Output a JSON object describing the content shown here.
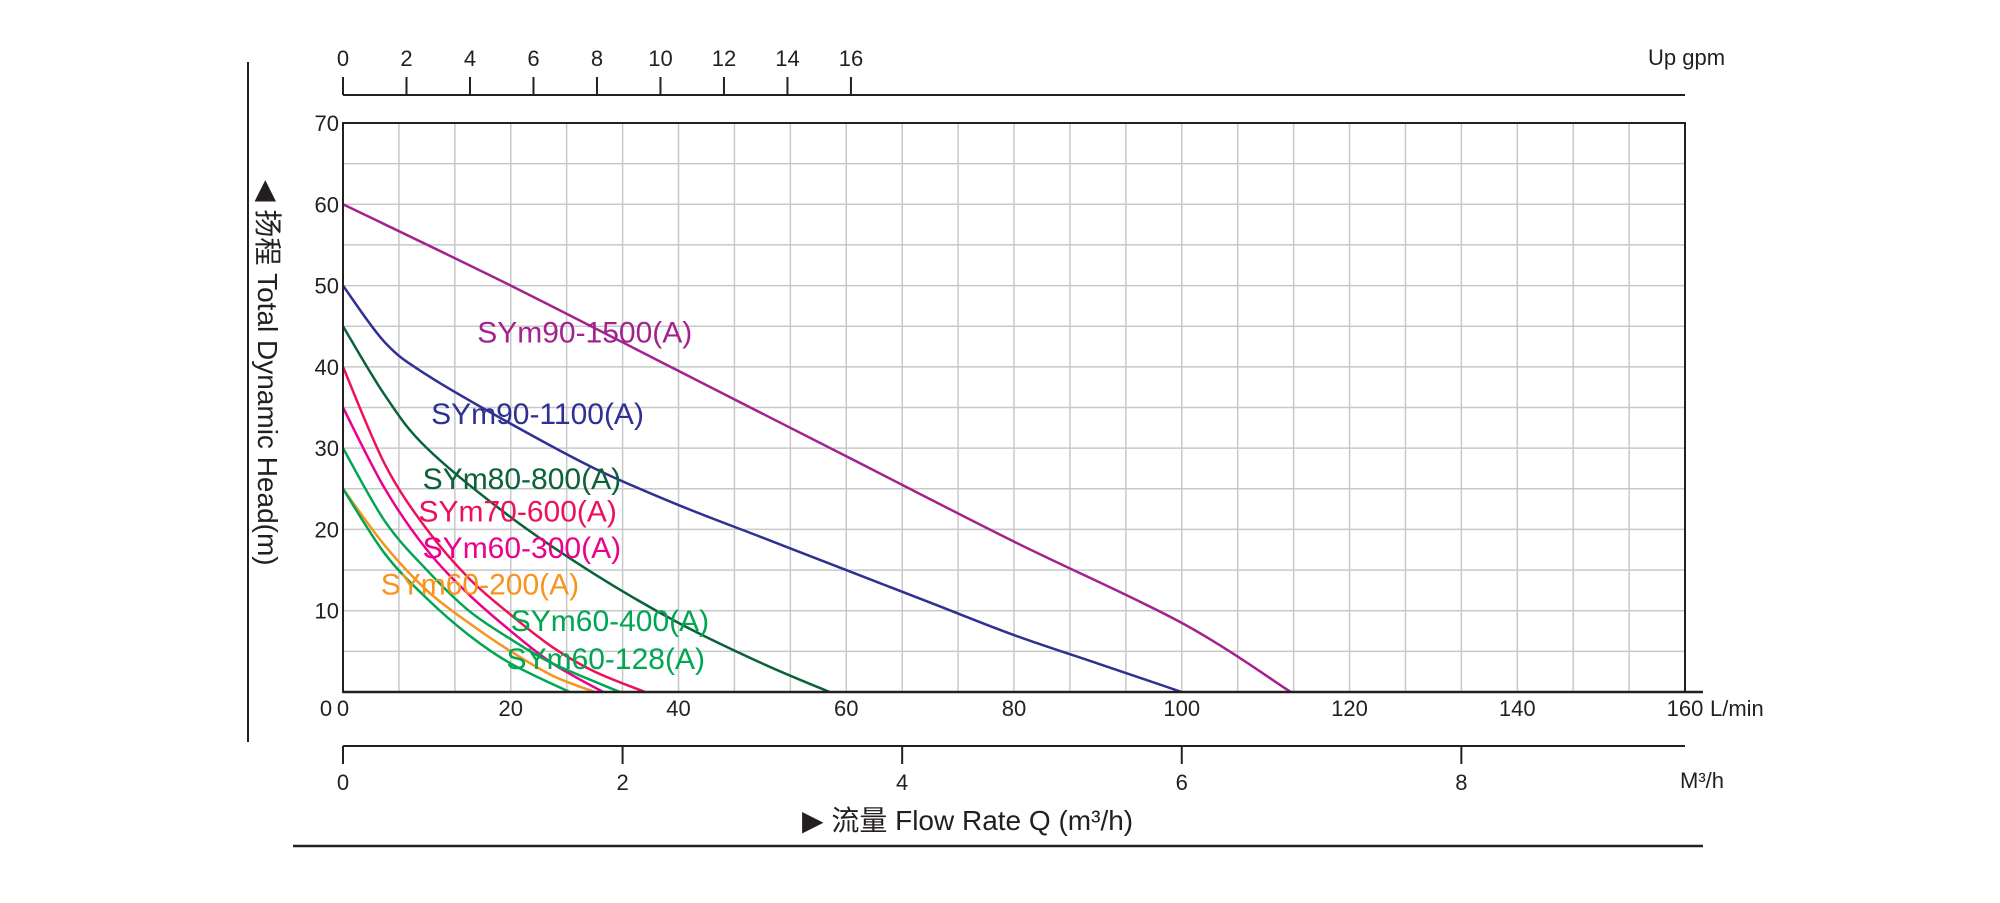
{
  "chart_data": {
    "type": "line",
    "xlabel": "▶ 流量 Flow Rate Q (m³/h)",
    "ylabel": "◀ 扬程 Total Dynamic Head(m)",
    "x_unit": "L/min",
    "xlim": [
      0,
      160
    ],
    "ylim": [
      0,
      70
    ],
    "x_ticks": [
      0,
      20,
      40,
      60,
      80,
      100,
      120,
      140,
      160
    ],
    "y_ticks": [
      10,
      20,
      30,
      40,
      50,
      60,
      70
    ],
    "y_ticks_label_zero": "0",
    "grid": true,
    "grid_x_step": 6.667,
    "grid_y_step": 5,
    "secondary_x_top": {
      "unit": "Up gpm",
      "ticks": [
        0,
        2,
        4,
        6,
        8,
        10,
        12,
        14,
        16
      ],
      "scale_lpm_per_unit": 3.785
    },
    "secondary_x_bottom": {
      "unit": "M³/h",
      "ticks": [
        0,
        2,
        4,
        6,
        8
      ],
      "scale_lpm_per_unit": 16.667
    },
    "series": [
      {
        "name": "SYm90-1500(A)",
        "color": "#a3238e",
        "x": [
          0,
          20,
          40,
          60,
          80,
          100,
          113
        ],
        "y": [
          60,
          50,
          39.5,
          29,
          18.5,
          8.5,
          0
        ],
        "label_pos": [
          16,
          43
        ]
      },
      {
        "name": "SYm90-1100(A)",
        "color": "#2e3192",
        "x": [
          0,
          5,
          10,
          20,
          30,
          40,
          50,
          60,
          70,
          80,
          90,
          100
        ],
        "y": [
          50,
          43,
          39,
          33,
          27.5,
          23,
          19,
          15,
          11,
          7,
          3.5,
          0
        ],
        "label_pos": [
          10.5,
          33
        ]
      },
      {
        "name": "SYm80-800(A)",
        "color": "#0b6138",
        "x": [
          0,
          5,
          10,
          20,
          30,
          40,
          50,
          58
        ],
        "y": [
          45,
          36.5,
          30,
          21.5,
          14.5,
          8.5,
          3.5,
          0
        ],
        "label_pos": [
          9.5,
          25
        ]
      },
      {
        "name": "SYm70-600(A)",
        "color": "#ed1157",
        "x": [
          0,
          5,
          10,
          15,
          20,
          25,
          30,
          36
        ],
        "y": [
          40,
          28,
          20,
          14,
          9.5,
          5.5,
          2.5,
          0
        ],
        "label_pos": [
          9,
          21
        ]
      },
      {
        "name": "SYm60-300(A)",
        "color": "#ec008c",
        "x": [
          0,
          5,
          10,
          15,
          20,
          25,
          31
        ],
        "y": [
          35,
          25,
          17.5,
          12,
          7.5,
          3.5,
          0
        ],
        "label_pos": [
          9.5,
          16.5
        ]
      },
      {
        "name": "SYm60-200(A)",
        "color": "#f7941d",
        "x": [
          0,
          5,
          10,
          15,
          20,
          25,
          30
        ],
        "y": [
          25,
          18,
          12.5,
          8.5,
          5,
          2,
          0
        ],
        "label_pos": [
          4.5,
          12
        ]
      },
      {
        "name": "SYm60-400(A)",
        "color": "#00a651",
        "x": [
          0,
          5,
          10,
          15,
          20,
          25,
          33
        ],
        "y": [
          30,
          21,
          15,
          10,
          6.5,
          3.5,
          0
        ],
        "label_pos": [
          20,
          7.5
        ]
      },
      {
        "name": "SYm60-128(A)",
        "color": "#00a651",
        "x": [
          0,
          5,
          10,
          15,
          20,
          27
        ],
        "y": [
          25,
          17,
          11.5,
          7,
          3.5,
          0
        ],
        "label_pos": [
          19.5,
          2.8
        ]
      }
    ]
  }
}
